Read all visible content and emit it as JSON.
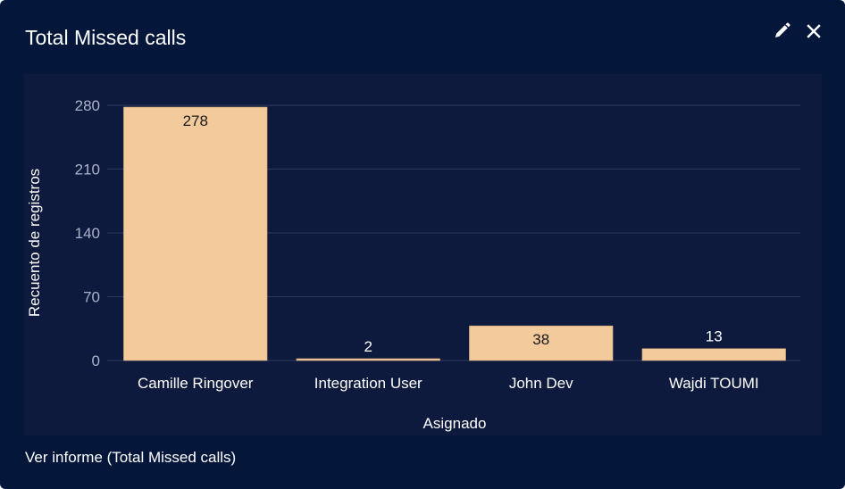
{
  "card": {
    "title": "Total Missed calls",
    "edit_icon": "pencil-icon",
    "close_icon": "close-icon",
    "footer_link": "Ver informe (Total Missed calls)"
  },
  "colors": {
    "background": "#04163a",
    "plot_background": "#0d1a3d",
    "bar": "#f2ca9c",
    "gridline": "#2a3658",
    "tick_label": "#a9b3c9",
    "text": "#ffffff",
    "bar_label_inside": "#1a1a1a"
  },
  "chart_data": {
    "type": "bar",
    "title": "Total Missed calls",
    "xlabel": "Asignado",
    "ylabel": "Recuento de registros",
    "categories": [
      "Camille Ringover",
      "Integration User",
      "John Dev",
      "Wajdi TOUMI"
    ],
    "values": [
      278,
      2,
      38,
      13
    ],
    "yticks": [
      0,
      70,
      140,
      210,
      280
    ],
    "ylim": [
      0,
      280
    ],
    "grid": true,
    "legend": "none"
  }
}
